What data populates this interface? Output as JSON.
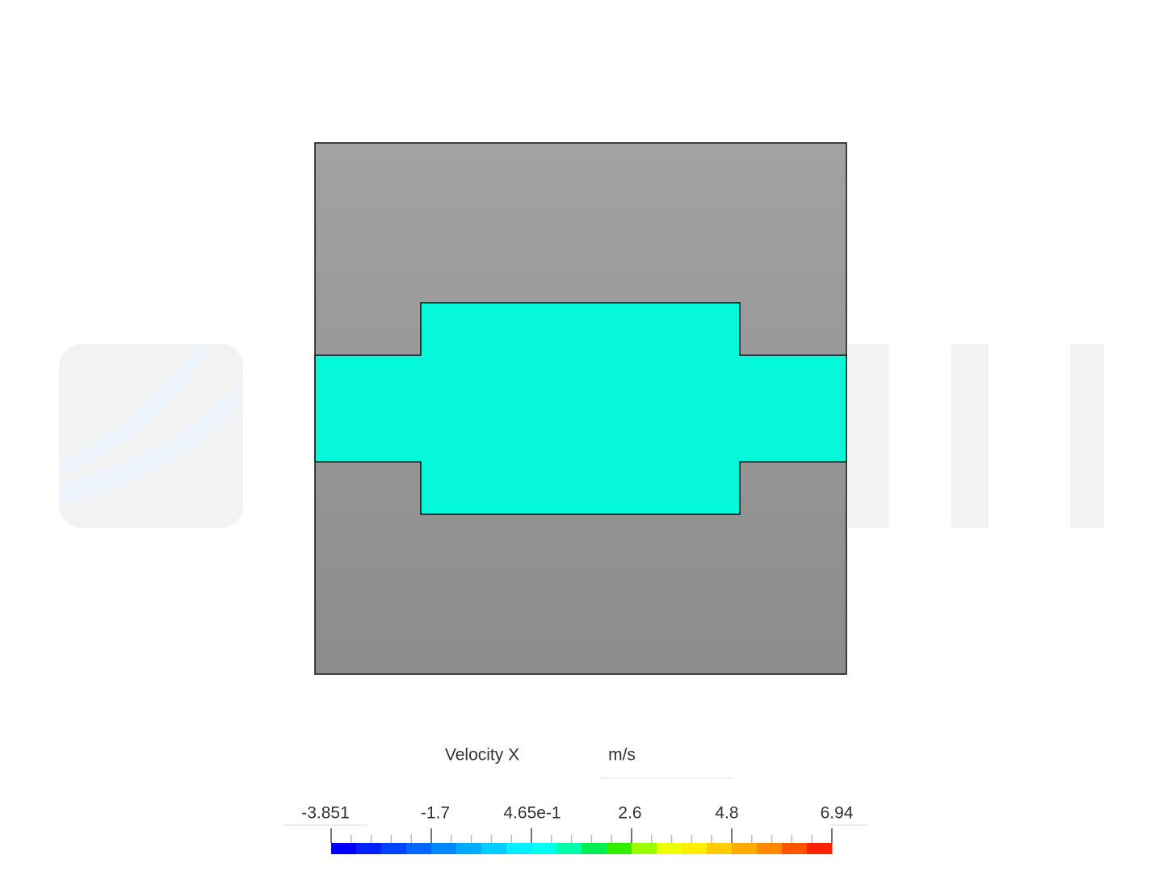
{
  "legend": {
    "title": "Velocity X",
    "unit": "m/s",
    "ticks": [
      "-3.851",
      "-1.7",
      "4.65e-1",
      "2.6",
      "4.8",
      "6.94"
    ],
    "colors": [
      "#0000ff",
      "#0022ff",
      "#0044ff",
      "#0066ff",
      "#0088ff",
      "#00aaff",
      "#00ccff",
      "#00eeff",
      "#00ffee",
      "#00ffaa",
      "#00ee55",
      "#33ee00",
      "#99ff00",
      "#eeff00",
      "#ffee00",
      "#ffcc00",
      "#ffaa00",
      "#ff8800",
      "#ff5500",
      "#ff2200"
    ]
  }
}
